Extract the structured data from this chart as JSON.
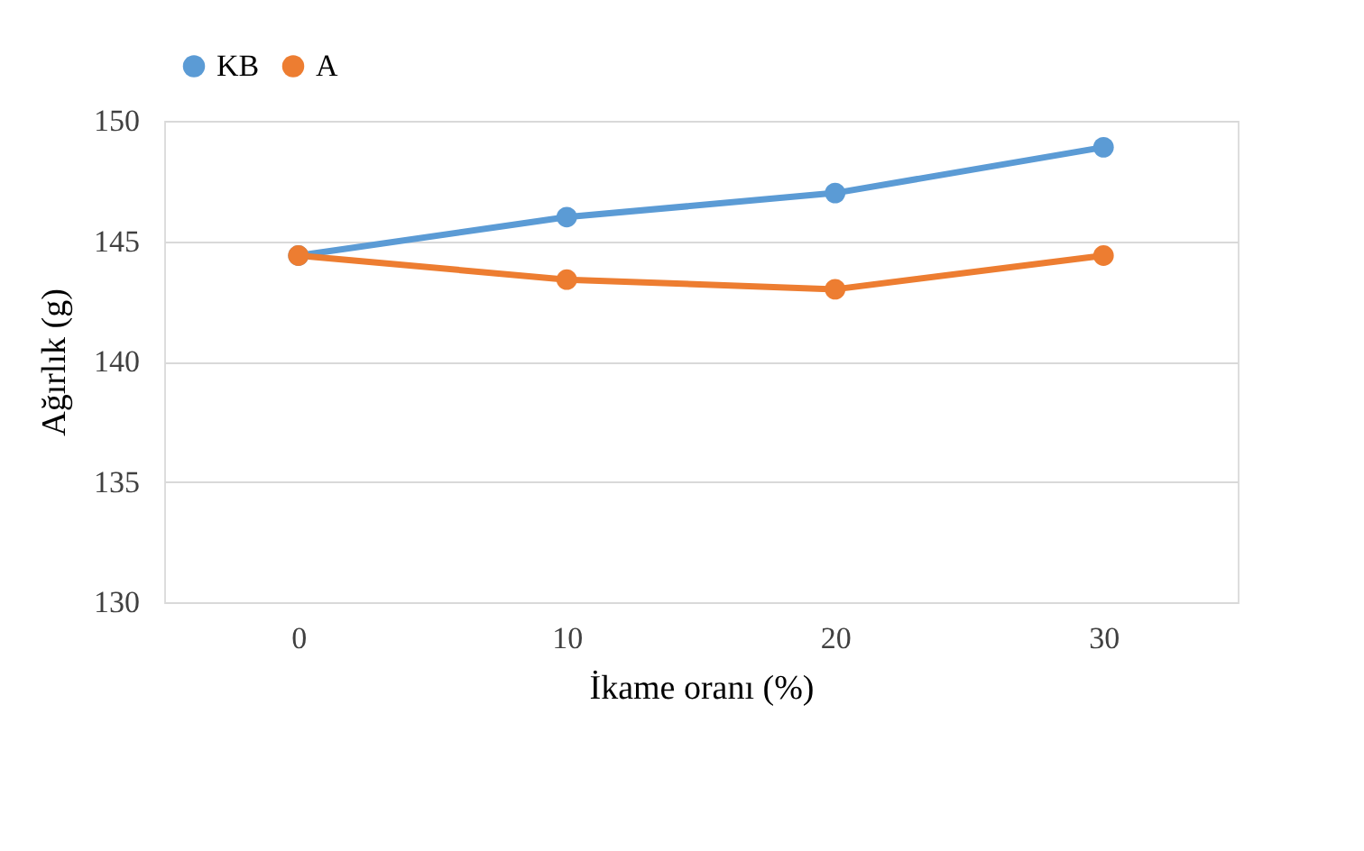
{
  "chart_data": {
    "type": "line",
    "xlabel": "İkame oranı (%)",
    "ylabel": "Ağırlık (g)",
    "categories": [
      "0",
      "10",
      "20",
      "30"
    ],
    "series": [
      {
        "name": "KB",
        "color": "#5b9bd5",
        "values": [
          144.4,
          146.0,
          147.0,
          148.9
        ]
      },
      {
        "name": "A",
        "color": "#ed7d31",
        "values": [
          144.4,
          143.4,
          143.0,
          144.4
        ]
      }
    ],
    "ylim": [
      130,
      150
    ],
    "yticks": [
      130,
      135,
      140,
      145,
      150
    ],
    "grid": "y",
    "legend": "top",
    "marker": "circle",
    "line_style": "solid"
  }
}
